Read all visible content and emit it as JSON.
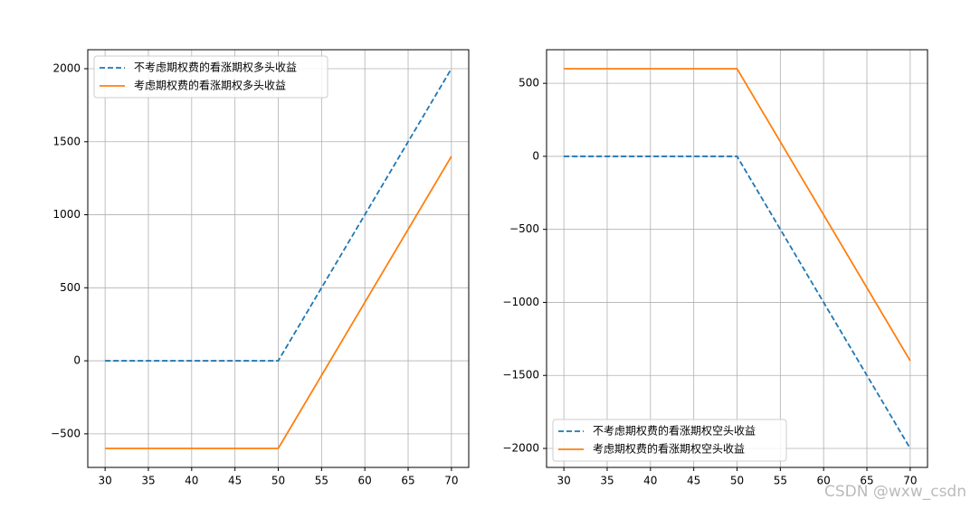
{
  "chart_data": [
    {
      "type": "line",
      "legend": "upper left",
      "grid": true,
      "xlim": [
        28,
        72
      ],
      "ylim": [
        -730,
        2130
      ],
      "xticks": [
        30,
        35,
        40,
        45,
        50,
        55,
        60,
        65,
        70
      ],
      "yticks": [
        {
          "value": -500,
          "label": "−500"
        },
        0,
        500,
        1000,
        1500,
        2000
      ],
      "series": [
        {
          "name": "不考虑期权费的看涨期权多头收益",
          "color": "#1f77b4",
          "dashed": true,
          "x": [
            30,
            50,
            70
          ],
          "values": [
            0,
            0,
            2000
          ]
        },
        {
          "name": "考虑期权费的看涨期权多头收益",
          "color": "#ff7f0e",
          "dashed": false,
          "x": [
            30,
            50,
            70
          ],
          "values": [
            -600,
            -600,
            1400
          ]
        }
      ]
    },
    {
      "type": "line",
      "legend": "lower left",
      "grid": true,
      "xlim": [
        28,
        72
      ],
      "ylim": [
        -2130,
        730
      ],
      "xticks": [
        30,
        35,
        40,
        45,
        50,
        55,
        60,
        65,
        70
      ],
      "yticks": [
        {
          "value": -2000,
          "label": "−2000"
        },
        {
          "value": -1500,
          "label": "−1500"
        },
        {
          "value": -1000,
          "label": "−1000"
        },
        {
          "value": -500,
          "label": "−500"
        },
        0,
        500
      ],
      "series": [
        {
          "name": "不考虑期权费的看涨期权空头收益",
          "color": "#1f77b4",
          "dashed": true,
          "x": [
            30,
            50,
            70
          ],
          "values": [
            0,
            0,
            -2000
          ]
        },
        {
          "name": "考虑期权费的看涨期权空头收益",
          "color": "#ff7f0e",
          "dashed": false,
          "x": [
            30,
            50,
            70
          ],
          "values": [
            600,
            600,
            -1400
          ]
        }
      ]
    }
  ],
  "watermark": "CSDN @wxw_csdn"
}
